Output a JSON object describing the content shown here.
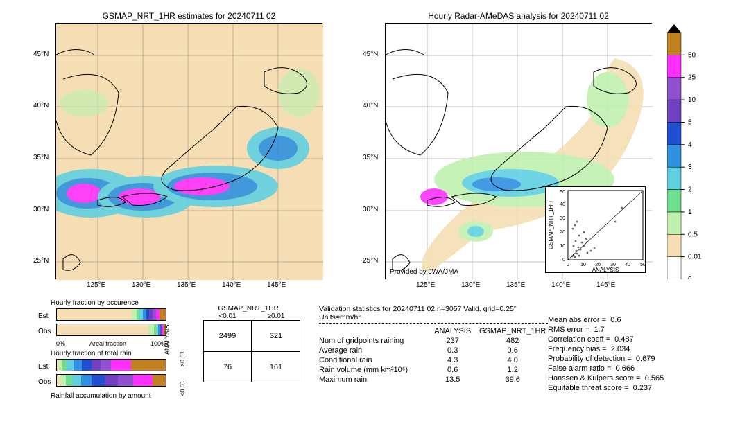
{
  "left_map": {
    "title": "GSMAP_NRT_1HR estimates for 20240711 02",
    "xlabels": [
      "125°E",
      "130°E",
      "135°E",
      "140°E",
      "145°E"
    ],
    "ylabels": [
      "25°N",
      "30°N",
      "35°N",
      "40°N",
      "45°N"
    ],
    "bg_color": "#f5deb3"
  },
  "right_map": {
    "title": "Hourly Radar-AMeDAS analysis for 20240711 02",
    "xlabels": [
      "125°E",
      "130°E",
      "135°E",
      "140°E",
      "145°E"
    ],
    "ylabels": [
      "25°N",
      "30°N",
      "35°N",
      "40°N",
      "45°N"
    ],
    "provided": "Provided by JWA/JMA",
    "bg_color": "#ffffff"
  },
  "colorbar": {
    "levels": [
      "0",
      "0.01",
      "0.5",
      "1",
      "2",
      "3",
      "4",
      "5",
      "10",
      "25",
      "50"
    ],
    "colors": [
      "#ffffff",
      "#f5deb3",
      "#c0f0b0",
      "#70e090",
      "#60d0e0",
      "#3090e0",
      "#2050d0",
      "#7040c0",
      "#9050d0",
      "#ff30ff",
      "#c08020"
    ],
    "top_color": "#000000"
  },
  "scatter": {
    "xlabel": "ANALYSIS",
    "ylabel": "GSMAP_NRT_1HR",
    "ticks": [
      "0",
      "10",
      "20",
      "30",
      "40",
      "50"
    ]
  },
  "fraction": {
    "title1": "Hourly fraction by occurence",
    "title2": "Hourly fraction of total rain",
    "title3": "Rainfall accumulation by amount",
    "label_est": "Est",
    "label_obs": "Obs",
    "axis_0": "0%",
    "axis_label": "Areal fraction",
    "axis_100": "100%"
  },
  "contingency": {
    "header": "GSMAP_NRT_1HR",
    "col1": "<0.01",
    "col2": "≥0.01",
    "side": "ANALYSIS",
    "r1": "≥0.01",
    "r2": "<0.01",
    "v11": "2499",
    "v12": "321",
    "v21": "76",
    "v22": "161"
  },
  "validation": {
    "title": "Validation statistics for 20240711 02  n=3057 Valid. grid=0.25°  Units=mm/hr.",
    "col1": "ANALYSIS",
    "col2": "GSMAP_NRT_1HR",
    "rows": [
      {
        "label": "Num of gridpoints raining",
        "a": "237",
        "b": "482"
      },
      {
        "label": "Average rain",
        "a": "0.3",
        "b": "0.6"
      },
      {
        "label": "Conditional rain",
        "a": "4.3",
        "b": "4.0"
      },
      {
        "label": "Rain volume (mm km²10⁶)",
        "a": "0.6",
        "b": "1.2"
      },
      {
        "label": "Maximum rain",
        "a": "13.5",
        "b": "39.6"
      }
    ]
  },
  "metrics": [
    {
      "label": "Mean abs error =",
      "v": "0.6"
    },
    {
      "label": "RMS error =",
      "v": "1.7"
    },
    {
      "label": "Correlation coeff =",
      "v": "0.487"
    },
    {
      "label": "Frequency bias =",
      "v": "2.034"
    },
    {
      "label": "Probability of detection =",
      "v": "0.679"
    },
    {
      "label": "False alarm ratio =",
      "v": "0.666"
    },
    {
      "label": "Hanssen & Kuipers score =",
      "v": "0.565"
    },
    {
      "label": "Equitable threat score =",
      "v": "0.237"
    }
  ],
  "est_occ_widths": [
    69,
    4,
    3,
    3,
    3,
    3,
    3,
    3,
    3,
    6
  ],
  "obs_occ_widths": [
    84,
    5,
    3,
    1,
    1,
    1,
    1,
    1,
    1,
    2
  ],
  "est_tot_widths": [
    2,
    3,
    4,
    6,
    8,
    9,
    8,
    10,
    18,
    32
  ],
  "obs_tot_widths": [
    3,
    5,
    6,
    8,
    10,
    12,
    12,
    14,
    18,
    12
  ]
}
